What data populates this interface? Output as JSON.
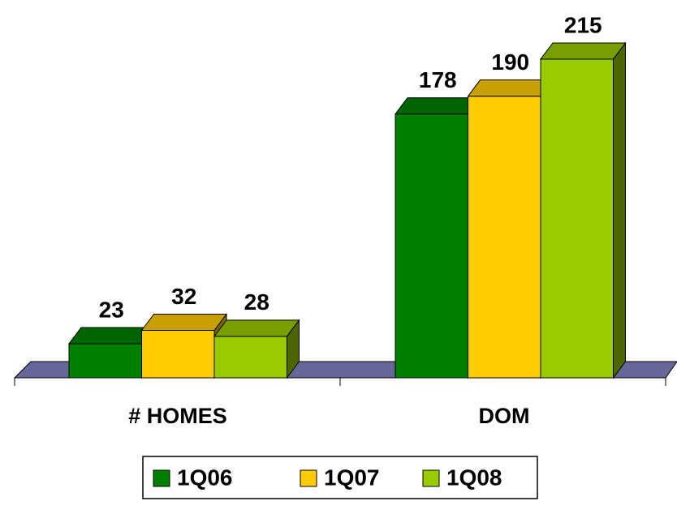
{
  "chart_data": {
    "type": "bar3d",
    "categories": [
      "# HOMES",
      "DOM"
    ],
    "series": [
      {
        "name": "1Q06",
        "color": "#008000",
        "values": [
          23,
          178
        ]
      },
      {
        "name": "1Q07",
        "color": "#ffcc00",
        "values": [
          32,
          190
        ]
      },
      {
        "name": "1Q08",
        "color": "#99cc00",
        "values": [
          28,
          215
        ]
      }
    ],
    "legend": "bottom"
  }
}
